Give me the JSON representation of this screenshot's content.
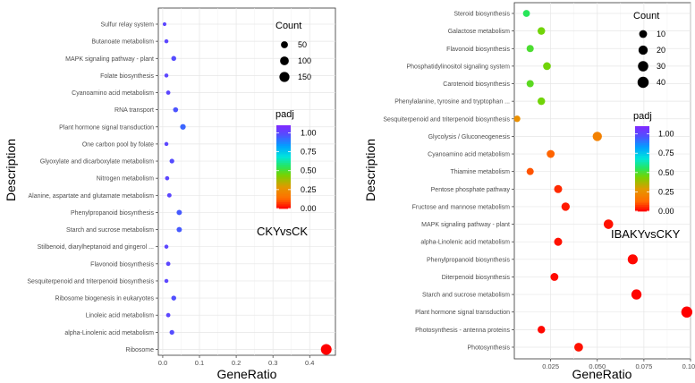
{
  "chart_data": [
    {
      "type": "scatter",
      "title": "CKYvsCK",
      "xlabel": "GeneRatio",
      "ylabel": "Description",
      "xlim": [
        -0.012,
        0.47
      ],
      "xticks": [
        0,
        0.1,
        0.2,
        0.3,
        0.4
      ],
      "xtick_labels": [
        "0.0",
        "0.1",
        "0.2",
        "0.3",
        "0.4"
      ],
      "categories": [
        "Sulfur relay system",
        "Butanoate metabolism",
        "MAPK signaling pathway - plant",
        "Folate biosynthesis",
        "Cyanoamino acid metabolism",
        "RNA transport",
        "Plant hormone signal transduction",
        "One carbon pool by folate",
        "Glyoxylate and dicarboxylate metabolism",
        "Nitrogen metabolism",
        "Alanine, aspartate and glutamate metabolism",
        "Phenylpropanoid biosynthesis",
        "Starch and sucrose metabolism",
        "Stilbenoid, diarylheptanoid and gingerol ...",
        "Flavonoid biosynthesis",
        "Sesquiterpenoid and triterpenoid biosynthesis",
        "Ribosome biogenesis in eukaryotes",
        "Linoleic acid metabolism",
        "alpha-Linolenic acid metabolism",
        "Ribosome"
      ],
      "gene_ratio": [
        0.005,
        0.01,
        0.03,
        0.01,
        0.015,
        0.035,
        0.055,
        0.01,
        0.025,
        0.012,
        0.018,
        0.045,
        0.045,
        0.01,
        0.015,
        0.01,
        0.03,
        0.015,
        0.025,
        0.445
      ],
      "count": [
        2,
        4,
        12,
        4,
        6,
        14,
        22,
        4,
        10,
        5,
        7,
        18,
        18,
        4,
        6,
        4,
        12,
        6,
        10,
        180
      ],
      "padj": [
        1.0,
        1.0,
        0.98,
        1.0,
        1.0,
        0.96,
        0.93,
        1.0,
        0.98,
        1.0,
        1.0,
        0.95,
        0.95,
        1.0,
        1.0,
        1.0,
        0.97,
        1.0,
        0.98,
        0.0
      ],
      "size_legend": {
        "title": "Count",
        "breaks": [
          50,
          100,
          150
        ],
        "labels": [
          "50",
          "100",
          "150"
        ]
      },
      "color_legend": {
        "title": "padj",
        "breaks": [
          0,
          0.25,
          0.5,
          0.75,
          1.0
        ],
        "labels": [
          "0.00",
          "0.25",
          "0.50",
          "0.75",
          "1.00"
        ],
        "range": [
          0,
          1.1
        ]
      }
    },
    {
      "type": "scatter",
      "title": "IBAKYvsCKY",
      "xlabel": "GeneRatio",
      "ylabel": "Description",
      "xlim": [
        0.0055,
        0.1
      ],
      "xticks": [
        0.025,
        0.05,
        0.075,
        0.1
      ],
      "xtick_labels": [
        "0.025",
        "0.050",
        "0.075",
        "0.100"
      ],
      "categories": [
        "Steroid biosynthesis",
        "Galactose metabolism",
        "Flavonoid biosynthesis",
        "Phosphatidylinositol signaling system",
        "Carotenoid biosynthesis",
        "Phenylalanine, tyrosine and tryptophan ...",
        "Sesquiterpenoid and triterpenoid biosynthesis",
        "Glycolysis / Gluconeogenesis",
        "Cyanoamino acid metabolism",
        "Thiamine metabolism",
        "Pentose phosphate pathway",
        "Fructose and mannose metabolism",
        "MAPK signaling pathway - plant",
        "alpha-Linolenic acid metabolism",
        "Phenylpropanoid biosynthesis",
        "Diterpenoid biosynthesis",
        "Starch and sucrose metabolism",
        "Plant hormone signal transduction",
        "Photosynthesis - antenna proteins",
        "Photosynthesis"
      ],
      "gene_ratio": [
        0.012,
        0.02,
        0.014,
        0.023,
        0.014,
        0.02,
        0.007,
        0.05,
        0.025,
        0.014,
        0.029,
        0.033,
        0.056,
        0.029,
        0.069,
        0.027,
        0.071,
        0.098,
        0.02,
        0.04
      ],
      "count": [
        5,
        8,
        6,
        9,
        6,
        8,
        3,
        20,
        10,
        6,
        11,
        13,
        22,
        11,
        27,
        10,
        28,
        39,
        8,
        16
      ],
      "padj": [
        0.55,
        0.45,
        0.5,
        0.45,
        0.48,
        0.45,
        0.25,
        0.2,
        0.12,
        0.1,
        0.05,
        0.03,
        0.02,
        0.02,
        0.01,
        0.01,
        0.005,
        0.0,
        0.01,
        0.02
      ],
      "size_legend": {
        "title": "Count",
        "breaks": [
          10,
          20,
          30,
          40
        ],
        "labels": [
          "10",
          "20",
          "30",
          "40"
        ]
      },
      "color_legend": {
        "title": "padj",
        "breaks": [
          0,
          0.25,
          0.5,
          0.75,
          1.0
        ],
        "labels": [
          "0.00",
          "0.25",
          "0.50",
          "0.75",
          "1.00"
        ],
        "range": [
          0,
          1.1
        ]
      }
    }
  ]
}
